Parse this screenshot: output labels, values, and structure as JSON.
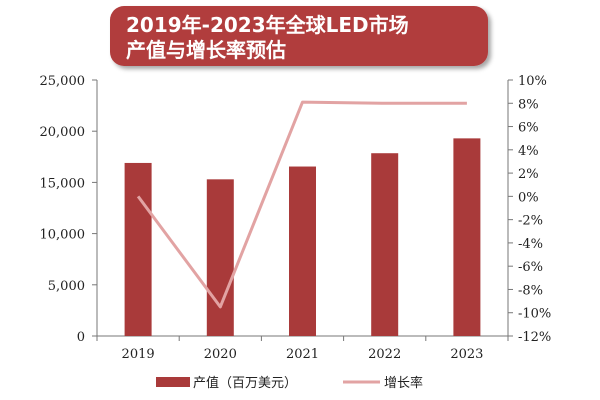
{
  "chart_data": {
    "type": "bar",
    "title_lines": [
      "2019年-2023年全球LED市场",
      "产值与增长率预估"
    ],
    "categories": [
      "2019",
      "2020",
      "2021",
      "2022",
      "2023"
    ],
    "series": [
      {
        "name": "产值（百万美元）",
        "type": "bar",
        "axis": "left",
        "values": [
          16900,
          15300,
          16550,
          17850,
          19300
        ]
      },
      {
        "name": "增长率",
        "type": "line",
        "axis": "right",
        "values": [
          0,
          -9.5,
          8.1,
          8.0,
          8.0
        ]
      }
    ],
    "y_left": {
      "min": 0,
      "max": 25000,
      "ticks": [
        "0",
        "5,000",
        "10,000",
        "15,000",
        "20,000",
        "25,000"
      ]
    },
    "y_right": {
      "min": -12,
      "max": 10,
      "unit": "%",
      "ticks": [
        "-12%",
        "-10%",
        "-8%",
        "-6%",
        "-4%",
        "-2%",
        "0%",
        "2%",
        "4%",
        "6%",
        "8%",
        "10%"
      ]
    },
    "legend_position": "bottom",
    "grid": false,
    "colors": {
      "bar": "#a93a3a",
      "line": "#e2a3a3",
      "title_box": "#b13e3e"
    }
  }
}
